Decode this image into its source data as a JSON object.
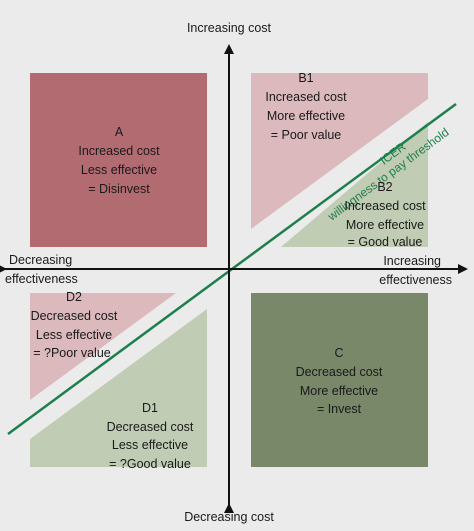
{
  "axes": {
    "top": "Increasing cost",
    "bottom": "Decreasing cost",
    "left": [
      "Decreasing",
      "effectiveness"
    ],
    "right": [
      "Increasing",
      "effectiveness"
    ]
  },
  "threshold": {
    "line1": "ICER",
    "line2": "willingness to pay threshold",
    "color": "#1e7f4e"
  },
  "quadrants": {
    "A": {
      "lines": [
        "A",
        "Increased cost",
        "Less effective",
        "= Disinvest"
      ],
      "color": "#b36b72"
    },
    "B1": {
      "lines": [
        "B1",
        "Increased cost",
        "More effective",
        "= Poor value"
      ],
      "color": "#dbb9bd"
    },
    "B2": {
      "lines": [
        "B2",
        "Increased cost",
        "More effective",
        "= Good value"
      ],
      "color": "#c0ccb3"
    },
    "C": {
      "lines": [
        "C",
        "Decreased cost",
        "More effective",
        "= Invest"
      ],
      "color": "#788868"
    },
    "D1": {
      "lines": [
        "D1",
        "Decreased cost",
        "Less effective",
        "= ?Good value"
      ],
      "color": "#c0ccb3"
    },
    "D2": {
      "lines": [
        "D2",
        "Decreased cost",
        "Less effective",
        "= ?Poor value"
      ],
      "color": "#dbb9bd"
    }
  }
}
